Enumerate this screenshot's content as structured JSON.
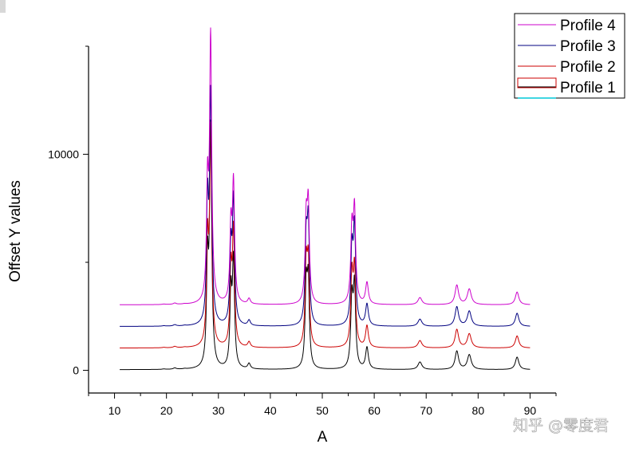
{
  "watermark": "知乎 @零度君",
  "chart_data": {
    "type": "line",
    "title": "",
    "xlabel": "A",
    "ylabel": "Offset Y values",
    "xlim": [
      5,
      95
    ],
    "ylim": [
      -1050,
      15000
    ],
    "xticks": [
      10,
      20,
      30,
      40,
      50,
      60,
      70,
      80,
      90
    ],
    "yticks": [
      0,
      10000
    ],
    "grid": false,
    "legend": {
      "position": "top-right",
      "order": [
        "Profile 4",
        "Profile 3",
        "Profile 2",
        "Profile 1"
      ]
    },
    "peaks": [
      {
        "x": 19.5,
        "w": 0.35
      },
      {
        "x": 21.6,
        "w": 0.35
      },
      {
        "x": 23.5,
        "w": 0.35
      },
      {
        "x": 27.9,
        "w": 0.22
      },
      {
        "x": 28.5,
        "w": 0.25
      },
      {
        "x": 32.4,
        "w": 0.22
      },
      {
        "x": 32.9,
        "w": 0.25
      },
      {
        "x": 35.9,
        "w": 0.3
      },
      {
        "x": 46.9,
        "w": 0.25
      },
      {
        "x": 47.3,
        "w": 0.25
      },
      {
        "x": 55.7,
        "w": 0.26
      },
      {
        "x": 56.2,
        "w": 0.26
      },
      {
        "x": 58.6,
        "w": 0.32
      },
      {
        "x": 68.8,
        "w": 0.45
      },
      {
        "x": 75.9,
        "w": 0.4
      },
      {
        "x": 78.3,
        "w": 0.45
      },
      {
        "x": 87.5,
        "w": 0.4
      }
    ],
    "series": [
      {
        "name": "Profile 1",
        "color": "#000000",
        "offset": 0,
        "baseline": 30,
        "amplitudes": [
          20,
          60,
          20,
          4500,
          11000,
          3300,
          4900,
          250,
          3600,
          3800,
          3100,
          3700,
          1000,
          350,
          850,
          680,
          580
        ]
      },
      {
        "name": "Profile 2",
        "color": "#cc0000",
        "offset": 1000,
        "baseline": 30,
        "amplitudes": [
          20,
          60,
          20,
          4500,
          9900,
          3300,
          5300,
          250,
          3600,
          3700,
          3200,
          3500,
          1000,
          340,
          850,
          650,
          560
        ]
      },
      {
        "name": "Profile 3",
        "color": "#000080",
        "offset": 2000,
        "baseline": 30,
        "amplitudes": [
          20,
          60,
          20,
          5300,
          10500,
          3300,
          5700,
          250,
          3700,
          4500,
          3300,
          4400,
          1000,
          330,
          900,
          700,
          610
        ]
      },
      {
        "name": "Profile 4",
        "color": "#cc00cc",
        "offset": 3000,
        "baseline": 30,
        "amplitudes": [
          20,
          60,
          20,
          5000,
          12200,
          3300,
          5500,
          250,
          3600,
          4300,
          3300,
          4200,
          1000,
          330,
          900,
          720,
          590
        ]
      }
    ]
  }
}
